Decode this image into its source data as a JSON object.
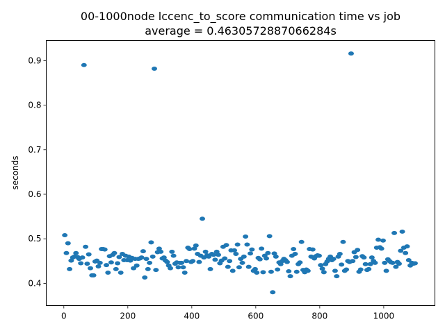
{
  "chart_data": {
    "type": "scatter",
    "title": "00-1000node lccenc_to_score communication time vs job",
    "subtitle": "average = 0.4630572887066284s",
    "xlabel": "",
    "ylabel": "seconds",
    "xlim": [
      -55,
      1160
    ],
    "ylim": [
      0.35,
      0.945
    ],
    "xticks": [
      0,
      200,
      400,
      600,
      800,
      1000
    ],
    "yticks": [
      0.4,
      0.5,
      0.6,
      0.7,
      0.8,
      0.9
    ],
    "ytick_labels": [
      "0.4",
      "0.5",
      "0.6",
      "0.7",
      "0.8",
      "0.9"
    ],
    "grid": false,
    "marker_color": "#1f77b4",
    "points": [
      [
        3,
        0.508
      ],
      [
        8,
        0.468
      ],
      [
        13,
        0.49
      ],
      [
        18,
        0.432
      ],
      [
        23,
        0.451
      ],
      [
        28,
        0.458
      ],
      [
        33,
        0.46
      ],
      [
        38,
        0.468
      ],
      [
        43,
        0.459
      ],
      [
        48,
        0.455
      ],
      [
        53,
        0.445
      ],
      [
        58,
        0.458
      ],
      [
        63,
        0.89
      ],
      [
        68,
        0.482
      ],
      [
        73,
        0.444
      ],
      [
        78,
        0.465
      ],
      [
        83,
        0.434
      ],
      [
        88,
        0.418
      ],
      [
        93,
        0.418
      ],
      [
        98,
        0.449
      ],
      [
        103,
        0.451
      ],
      [
        108,
        0.438
      ],
      [
        113,
        0.446
      ],
      [
        118,
        0.477
      ],
      [
        123,
        0.477
      ],
      [
        128,
        0.476
      ],
      [
        133,
        0.441
      ],
      [
        138,
        0.424
      ],
      [
        143,
        0.461
      ],
      [
        148,
        0.447
      ],
      [
        153,
        0.464
      ],
      [
        158,
        0.468
      ],
      [
        163,
        0.432
      ],
      [
        168,
        0.445
      ],
      [
        173,
        0.459
      ],
      [
        178,
        0.424
      ],
      [
        183,
        0.466
      ],
      [
        188,
        0.452
      ],
      [
        193,
        0.462
      ],
      [
        198,
        0.452
      ],
      [
        203,
        0.46
      ],
      [
        208,
        0.451
      ],
      [
        213,
        0.457
      ],
      [
        218,
        0.434
      ],
      [
        223,
        0.455
      ],
      [
        228,
        0.44
      ],
      [
        233,
        0.455
      ],
      [
        238,
        0.456
      ],
      [
        243,
        0.458
      ],
      [
        248,
        0.472
      ],
      [
        253,
        0.413
      ],
      [
        258,
        0.455
      ],
      [
        263,
        0.432
      ],
      [
        268,
        0.446
      ],
      [
        273,
        0.492
      ],
      [
        278,
        0.46
      ],
      [
        283,
        0.882
      ],
      [
        288,
        0.43
      ],
      [
        293,
        0.47
      ],
      [
        298,
        0.478
      ],
      [
        303,
        0.471
      ],
      [
        308,
        0.456
      ],
      [
        313,
        0.458
      ],
      [
        318,
        0.451
      ],
      [
        323,
        0.448
      ],
      [
        328,
        0.44
      ],
      [
        333,
        0.434
      ],
      [
        338,
        0.471
      ],
      [
        343,
        0.462
      ],
      [
        348,
        0.444
      ],
      [
        353,
        0.447
      ],
      [
        358,
        0.436
      ],
      [
        363,
        0.446
      ],
      [
        368,
        0.446
      ],
      [
        373,
        0.436
      ],
      [
        378,
        0.424
      ],
      [
        383,
        0.45
      ],
      [
        388,
        0.48
      ],
      [
        393,
        0.477
      ],
      [
        398,
        0.448
      ],
      [
        403,
        0.45
      ],
      [
        408,
        0.478
      ],
      [
        413,
        0.485
      ],
      [
        418,
        0.466
      ],
      [
        423,
        0.448
      ],
      [
        428,
        0.462
      ],
      [
        433,
        0.545
      ],
      [
        438,
        0.458
      ],
      [
        443,
        0.471
      ],
      [
        448,
        0.463
      ],
      [
        453,
        0.46
      ],
      [
        458,
        0.432
      ],
      [
        463,
        0.466
      ],
      [
        468,
        0.464
      ],
      [
        473,
        0.453
      ],
      [
        478,
        0.471
      ],
      [
        483,
        0.464
      ],
      [
        488,
        0.445
      ],
      [
        493,
        0.451
      ],
      [
        498,
        0.482
      ],
      [
        503,
        0.456
      ],
      [
        508,
        0.486
      ],
      [
        513,
        0.437
      ],
      [
        518,
        0.45
      ],
      [
        523,
        0.474
      ],
      [
        528,
        0.428
      ],
      [
        533,
        0.474
      ],
      [
        538,
        0.466
      ],
      [
        543,
        0.487
      ],
      [
        548,
        0.436
      ],
      [
        553,
        0.455
      ],
      [
        558,
        0.446
      ],
      [
        563,
        0.46
      ],
      [
        568,
        0.505
      ],
      [
        573,
        0.487
      ],
      [
        578,
        0.437
      ],
      [
        583,
        0.467
      ],
      [
        588,
        0.476
      ],
      [
        593,
        0.428
      ],
      [
        598,
        0.432
      ],
      [
        603,
        0.424
      ],
      [
        608,
        0.457
      ],
      [
        613,
        0.454
      ],
      [
        618,
        0.478
      ],
      [
        623,
        0.425
      ],
      [
        628,
        0.462
      ],
      [
        633,
        0.456
      ],
      [
        638,
        0.468
      ],
      [
        643,
        0.506
      ],
      [
        648,
        0.426
      ],
      [
        653,
        0.38
      ],
      [
        658,
        0.467
      ],
      [
        663,
        0.46
      ],
      [
        668,
        0.431
      ],
      [
        673,
        0.447
      ],
      [
        678,
        0.443
      ],
      [
        683,
        0.45
      ],
      [
        688,
        0.455
      ],
      [
        693,
        0.452
      ],
      [
        698,
        0.448
      ],
      [
        703,
        0.427
      ],
      [
        708,
        0.416
      ],
      [
        713,
        0.462
      ],
      [
        718,
        0.477
      ],
      [
        723,
        0.466
      ],
      [
        728,
        0.426
      ],
      [
        733,
        0.443
      ],
      [
        738,
        0.447
      ],
      [
        743,
        0.493
      ],
      [
        748,
        0.43
      ],
      [
        753,
        0.425
      ],
      [
        758,
        0.431
      ],
      [
        763,
        0.428
      ],
      [
        768,
        0.477
      ],
      [
        773,
        0.46
      ],
      [
        778,
        0.476
      ],
      [
        783,
        0.456
      ],
      [
        788,
        0.461
      ],
      [
        793,
        0.463
      ],
      [
        798,
        0.462
      ],
      [
        803,
        0.441
      ],
      [
        808,
        0.433
      ],
      [
        813,
        0.425
      ],
      [
        818,
        0.443
      ],
      [
        823,
        0.449
      ],
      [
        828,
        0.455
      ],
      [
        833,
        0.46
      ],
      [
        838,
        0.452
      ],
      [
        843,
        0.455
      ],
      [
        848,
        0.428
      ],
      [
        853,
        0.416
      ],
      [
        858,
        0.46
      ],
      [
        863,
        0.466
      ],
      [
        868,
        0.442
      ],
      [
        873,
        0.493
      ],
      [
        878,
        0.428
      ],
      [
        883,
        0.431
      ],
      [
        888,
        0.45
      ],
      [
        893,
        0.448
      ],
      [
        898,
        0.916
      ],
      [
        903,
        0.45
      ],
      [
        908,
        0.47
      ],
      [
        913,
        0.459
      ],
      [
        918,
        0.475
      ],
      [
        923,
        0.426
      ],
      [
        928,
        0.431
      ],
      [
        933,
        0.461
      ],
      [
        938,
        0.458
      ],
      [
        943,
        0.443
      ],
      [
        948,
        0.43
      ],
      [
        953,
        0.432
      ],
      [
        958,
        0.443
      ],
      [
        963,
        0.458
      ],
      [
        968,
        0.45
      ],
      [
        973,
        0.446
      ],
      [
        978,
        0.48
      ],
      [
        983,
        0.498
      ],
      [
        988,
        0.481
      ],
      [
        993,
        0.478
      ],
      [
        998,
        0.496
      ],
      [
        1003,
        0.446
      ],
      [
        1008,
        0.428
      ],
      [
        1013,
        0.454
      ],
      [
        1018,
        0.45
      ],
      [
        1023,
        0.447
      ],
      [
        1028,
        0.446
      ],
      [
        1033,
        0.513
      ],
      [
        1038,
        0.437
      ],
      [
        1043,
        0.448
      ],
      [
        1048,
        0.444
      ],
      [
        1053,
        0.473
      ],
      [
        1058,
        0.516
      ],
      [
        1063,
        0.48
      ],
      [
        1068,
        0.468
      ],
      [
        1073,
        0.483
      ],
      [
        1078,
        0.452
      ],
      [
        1083,
        0.44
      ],
      [
        1088,
        0.446
      ],
      [
        1093,
        0.444
      ],
      [
        1098,
        0.445
      ]
    ]
  }
}
